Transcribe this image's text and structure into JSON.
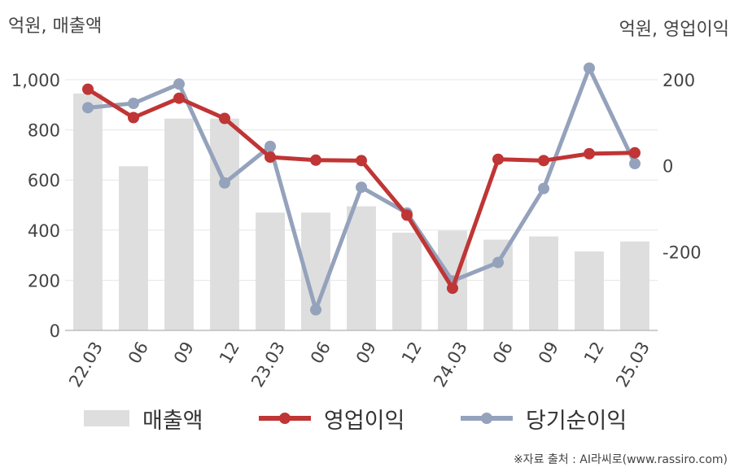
{
  "chart_data": {
    "type": "bar",
    "categories": [
      "22.03",
      "06",
      "09",
      "12",
      "23.03",
      "06",
      "09",
      "12",
      "24.03",
      "06",
      "09",
      "12",
      "25.03"
    ],
    "series": [
      {
        "name": "매출액",
        "type": "bar",
        "axis": "left",
        "color": "#dedede",
        "values": [
          945,
          655,
          845,
          845,
          470,
          470,
          495,
          390,
          398,
          362,
          375,
          315,
          355
        ]
      },
      {
        "name": "영업이익",
        "type": "line",
        "axis": "right",
        "color": "#c03535",
        "values": [
          178,
          112,
          157,
          110,
          20,
          13,
          12,
          -115,
          -285,
          15,
          12,
          28,
          30
        ]
      },
      {
        "name": "당기순이익",
        "type": "line",
        "axis": "right",
        "color": "#94a2bc",
        "values": [
          135,
          145,
          190,
          -40,
          45,
          -335,
          -50,
          -110,
          -268,
          -225,
          -53,
          227,
          5
        ]
      }
    ],
    "y_left": {
      "label": "억원, 매출액",
      "range": [
        0,
        1000
      ],
      "ticks": [
        0,
        200,
        400,
        600,
        800,
        1000
      ],
      "tick_labels": [
        "0",
        "200",
        "400",
        "600",
        "800",
        "1,000"
      ]
    },
    "y_right": {
      "label": "억원, 영업이익",
      "range": [
        -383,
        200
      ],
      "ticks": [
        -200,
        0,
        200
      ],
      "tick_labels": [
        "-200",
        "0",
        "200"
      ]
    },
    "grid": true,
    "legend_position": "bottom"
  },
  "legend": {
    "bar": "매출액",
    "line1": "영업이익",
    "line2": "당기순이익"
  },
  "source": "※자료 출처 : AI라씨로(www.rassiro.com)"
}
